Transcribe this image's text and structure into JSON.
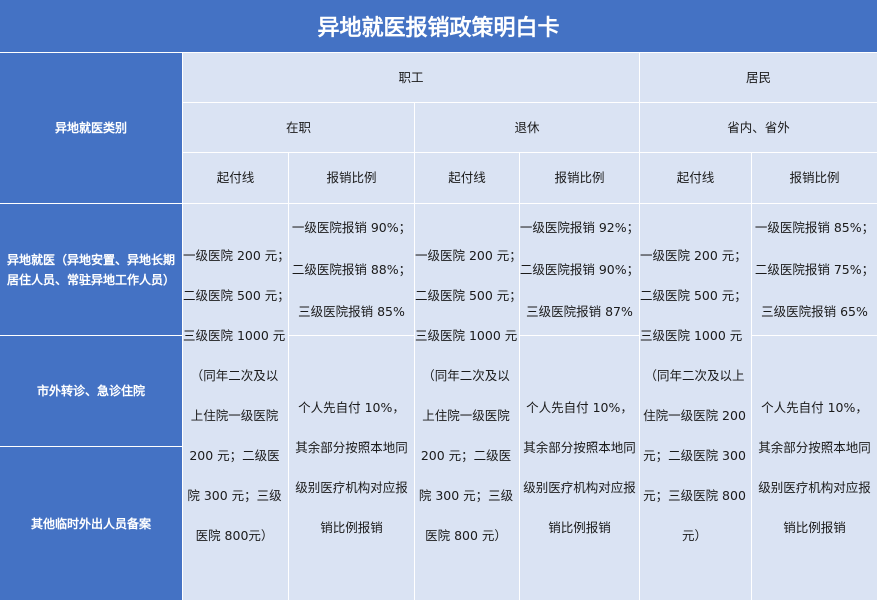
{
  "title": "异地就医报销政策明白卡",
  "header": {
    "category_label": "异地就医类别",
    "group_employee": "职工",
    "group_resident": "居民",
    "sub_active": "在职",
    "sub_retired": "退休",
    "sub_resident": "省内、省外",
    "col_threshold": "起付线",
    "col_ratio": "报销比例"
  },
  "rows": {
    "row1": "异地就医（异地安置、异地长期居住人员、常驻异地工作人员）",
    "row2": "市外转诊、急诊住院",
    "row3": "其他临时外出人员备案"
  },
  "threshold": {
    "lines": [
      "一级医院 200 元；",
      "二级医院 500 元；",
      "三级医院 1000 元"
    ],
    "note_active": "（同年二次及以上住院一级医院 200 元；二级医院 300 元；三级医院 800元）",
    "note_retired": "（同年二次及以上住院一级医院 200 元；二级医院 300 元；三级医院 800 元）",
    "note_resident": "（同年二次及以上住院一级医院 200 元；二级医院 300 元；三级医院 800 元）"
  },
  "ratio": {
    "active": [
      "一级医院报销 90%；",
      "二级医院报销 88%；",
      "三级医院报销 85%"
    ],
    "retired": [
      "一级医院报销 92%；",
      "二级医院报销 90%；",
      "三级医院报销 87%"
    ],
    "resident": [
      "一级医院报销 85%；",
      "二级医院报销 75%；",
      "三级医院报销 65%"
    ],
    "self_pay": "个人先自付 10%，其余部分按照本地同级别医疗机构对应报销比例报销"
  }
}
